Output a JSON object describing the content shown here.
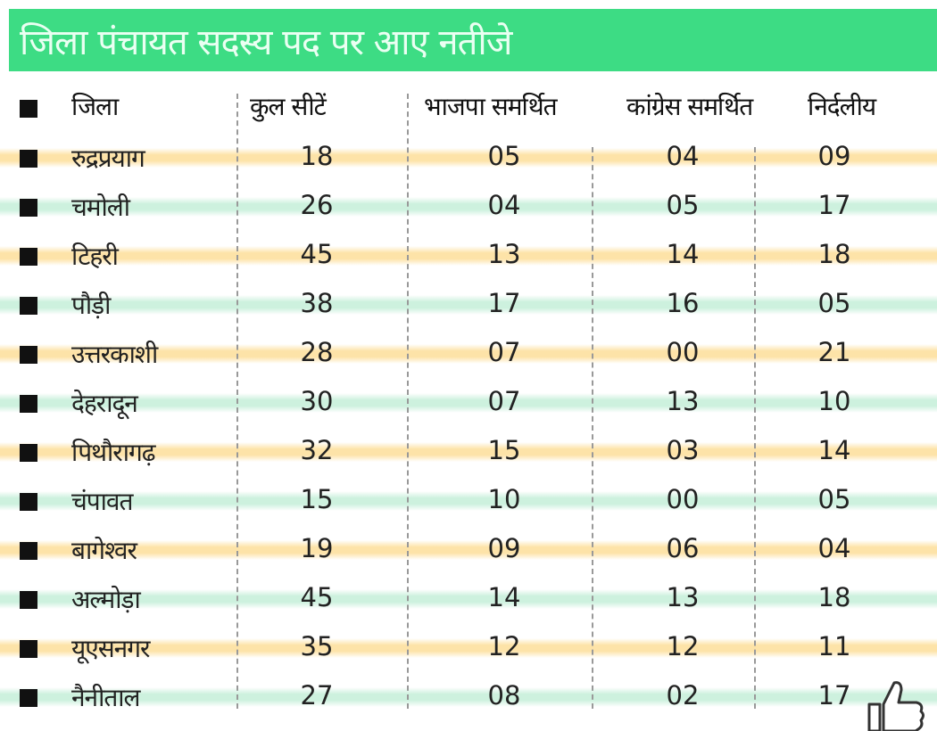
{
  "title": "जिला पंचायत सदस्य पद पर आए नतीजे",
  "headers": [
    "जिला",
    "कुल सीटें",
    "भाजपा समर्थित",
    "कांग्रेस समर्थित",
    "निर्दलीय"
  ],
  "rows": [
    {
      "district": "रुद्रप्रयाग",
      "total": "18",
      "bjp": "05",
      "congress": "04",
      "independent": "09"
    },
    {
      "district": "चमोली",
      "total": "26",
      "bjp": "04",
      "congress": "05",
      "independent": "17"
    },
    {
      "district": "टिहरी",
      "total": "45",
      "bjp": "13",
      "congress": "14",
      "independent": "18"
    },
    {
      "district": "पौड़ी",
      "total": "38",
      "bjp": "17",
      "congress": "16",
      "independent": "05"
    },
    {
      "district": "उत्तरकाशी",
      "total": "28",
      "bjp": "07",
      "congress": "00",
      "independent": "21"
    },
    {
      "district": "देहरादून",
      "total": "30",
      "bjp": "07",
      "congress": "13",
      "independent": "10"
    },
    {
      "district": "पिथौरागढ़",
      "total": "32",
      "bjp": "15",
      "congress": "03",
      "independent": "14"
    },
    {
      "district": "चंपावत",
      "total": "15",
      "bjp": "10",
      "congress": "00",
      "independent": "05"
    },
    {
      "district": "बागेश्वर",
      "total": "19",
      "bjp": "09",
      "congress": "06",
      "independent": "04"
    },
    {
      "district": "अल्मोड़ा",
      "total": "45",
      "bjp": "14",
      "congress": "13",
      "independent": "18"
    },
    {
      "district": "यूएसनगर",
      "total": "35",
      "bjp": "12",
      "congress": "12",
      "independent": "11"
    },
    {
      "district": "नैनीताल",
      "total": "27",
      "bjp": "08",
      "congress": "02",
      "independent": "17"
    }
  ],
  "colors": {
    "title_bg": "#3ddc84",
    "stripe_yellow": "#fde3a8",
    "stripe_green": "#cdf1de"
  }
}
